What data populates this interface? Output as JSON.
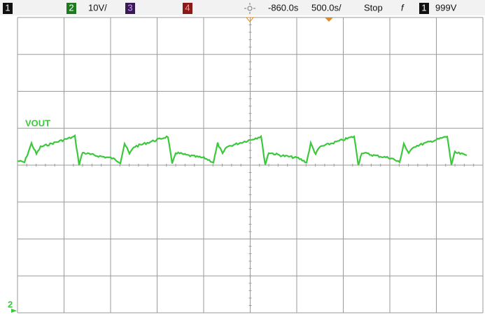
{
  "header": {
    "ch1": "1",
    "ch2": "2",
    "ch2_scale": "10V/",
    "ch3": "3",
    "ch4": "4",
    "delay": "-860.0s",
    "timebase": "500.0s/",
    "run_state": "Stop",
    "trigger_icon": "f",
    "trigger_ch": "1",
    "trigger_level": "999V"
  },
  "trace": {
    "label": "VOUT",
    "marker": "2"
  }
}
